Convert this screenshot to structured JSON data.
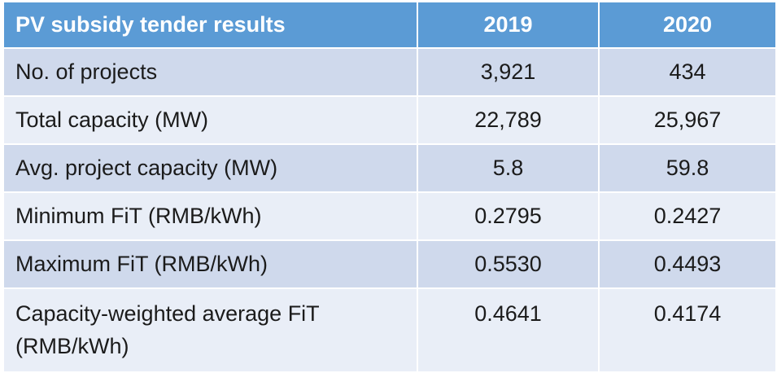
{
  "chart_data": {
    "type": "table",
    "columns": [
      "PV subsidy tender results",
      "2019",
      "2020"
    ],
    "rows": [
      {
        "label": "No. of projects",
        "values": [
          "3,921",
          "434"
        ]
      },
      {
        "label": "Total capacity (MW)",
        "values": [
          "22,789",
          "25,967"
        ]
      },
      {
        "label": "Avg. project capacity (MW)",
        "values": [
          "5.8",
          "59.8"
        ]
      },
      {
        "label": "Minimum FiT (RMB/kWh)",
        "values": [
          "0.2795",
          "0.2427"
        ]
      },
      {
        "label": "Maximum FiT (RMB/kWh)",
        "values": [
          "0.5530",
          "0.4493"
        ]
      },
      {
        "label": "Capacity-weighted average FiT (RMB/kWh)",
        "values": [
          "0.4641",
          "0.4174"
        ]
      }
    ]
  },
  "colors": {
    "header": "#5b9bd5",
    "row_dark": "#cfd9ec",
    "row_light": "#e9eef7",
    "header_text": "#ffffff",
    "body_text": "#1b1b1b"
  }
}
